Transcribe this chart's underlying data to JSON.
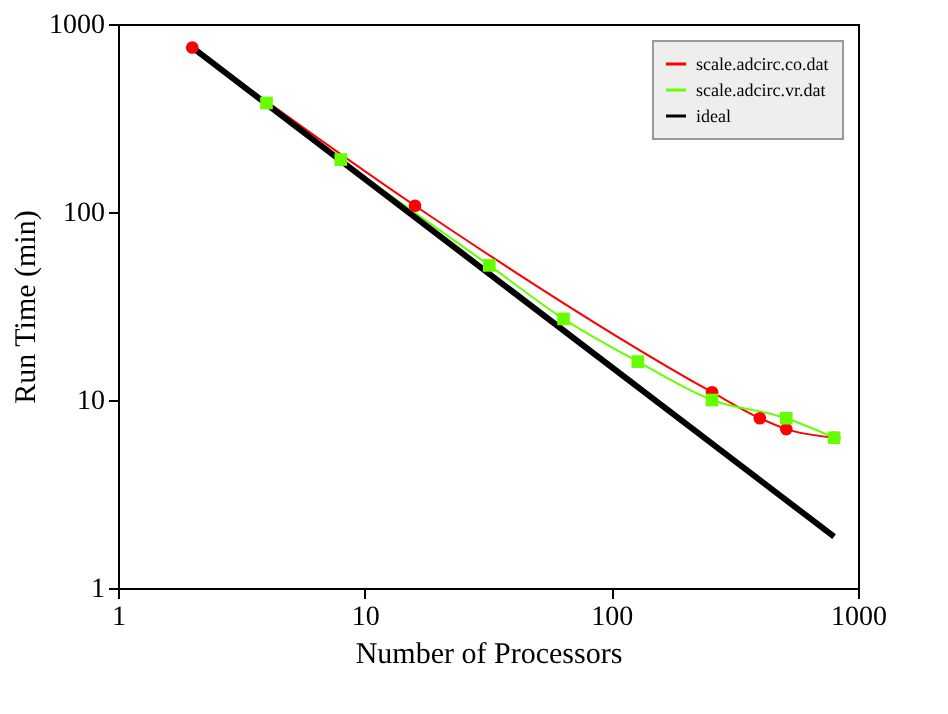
{
  "chart_data": {
    "type": "line",
    "xlabel": "Number of Processors",
    "ylabel": "Run Time (min)",
    "log": "xy",
    "xlim": [
      1,
      1000
    ],
    "ylim": [
      1,
      1000
    ],
    "xticks": [
      1,
      10,
      100,
      1000
    ],
    "yticks": [
      1,
      10,
      100,
      1000
    ],
    "grid": false,
    "legend": "top right",
    "series": [
      {
        "name": "scale.adcirc.co.dat",
        "color": "#ff0000",
        "marker": "circle",
        "x": [
          2,
          16,
          256,
          400,
          512,
          800
        ],
        "values": [
          750,
          108,
          11,
          8,
          7,
          6.3
        ]
      },
      {
        "name": "scale.adcirc.vr.dat",
        "color": "#66ff00",
        "marker": "square",
        "x": [
          4,
          8,
          32,
          64,
          128,
          256,
          512,
          800
        ],
        "values": [
          380,
          190,
          52,
          27,
          16,
          10,
          8,
          6.3
        ]
      },
      {
        "name": "ideal",
        "color": "#000000",
        "marker": "none",
        "x": [
          2,
          800
        ],
        "values": [
          750,
          1.875
        ]
      }
    ]
  }
}
